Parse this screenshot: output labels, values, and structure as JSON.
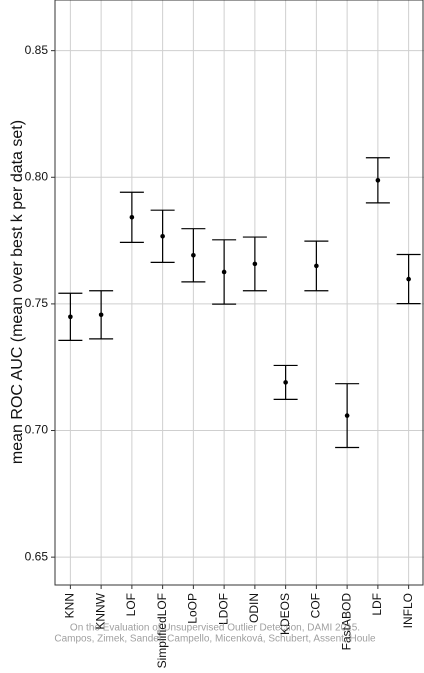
{
  "chart_data": {
    "type": "errorbar",
    "y_label": "mean ROC AUC (mean over best k per data set)",
    "categories": [
      "KNN",
      "KNNW",
      "LOF",
      "SimplifiedLOF",
      "LoOP",
      "LDOF",
      "ODIN",
      "KDEOS",
      "COF",
      "FastABOD",
      "LDF",
      "INFLO"
    ],
    "series": [
      {
        "values": [
          0.7449,
          0.7457,
          0.7842,
          0.7767,
          0.7692,
          0.7626,
          0.7658,
          0.719,
          0.765,
          0.7059,
          0.7988,
          0.7598
        ],
        "errors": [
          0.0093,
          0.0095,
          0.0099,
          0.0103,
          0.0105,
          0.0127,
          0.0106,
          0.0067,
          0.0098,
          0.0126,
          0.0089,
          0.0097
        ],
        "color": "#000000"
      }
    ],
    "ylim": [
      0.639,
      0.87
    ],
    "yticks": [
      0.65,
      {
        "value": 0.7,
        "label": "0.70"
      },
      0.75,
      {
        "value": 0.8,
        "label": "0.80"
      },
      0.85
    ],
    "grid": true,
    "annotations": [
      "On the Evaluation of Unsupervised Outlier Detection, DAMI 2015.",
      "Campos, Zimek, Sander, Campello, Micenková, Schubert, Assent, Houle"
    ]
  }
}
